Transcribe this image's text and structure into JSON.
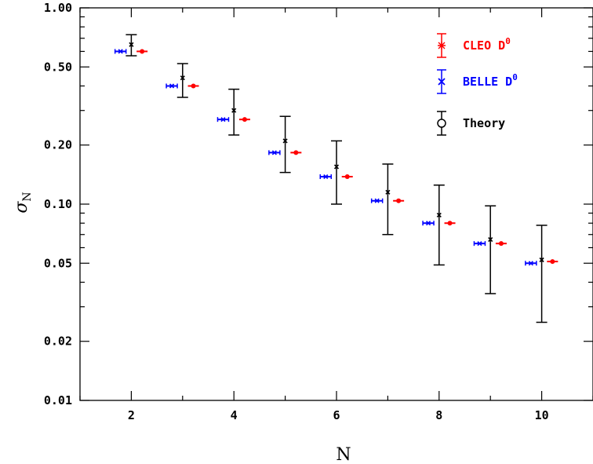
{
  "chart_data": {
    "type": "scatter",
    "xlabel": "N",
    "ylabel": "σ",
    "ylabel_sub": "N",
    "xlim": [
      1,
      11
    ],
    "ylim": [
      0.01,
      1.0
    ],
    "yscale": "log",
    "x_ticks": [
      "2",
      "4",
      "6",
      "8",
      "10"
    ],
    "y_ticks": [
      "0.01",
      "0.02",
      "0.05",
      "0.10",
      "0.20",
      "0.50",
      "1.00"
    ],
    "grid": false,
    "legend_position": "top-right",
    "series": [
      {
        "name": "CLEO D",
        "name_sup": "0",
        "color": "#ff0000",
        "marker": "star",
        "x": [
          2,
          3,
          4,
          5,
          6,
          7,
          8,
          9,
          10
        ],
        "y": [
          0.6,
          0.4,
          0.27,
          0.183,
          0.138,
          0.104,
          0.08,
          0.063,
          0.051
        ],
        "err": [
          0.01,
          0.008,
          0.006,
          0.004,
          0.003,
          0.002,
          0.002,
          0.0015,
          0.0012
        ]
      },
      {
        "name": "BELLE D",
        "name_sup": "0",
        "color": "#0000ff",
        "marker": "x",
        "x": [
          2,
          3,
          4,
          5,
          6,
          7,
          8,
          9,
          10
        ],
        "y": [
          0.6,
          0.4,
          0.27,
          0.183,
          0.138,
          0.104,
          0.08,
          0.063,
          0.05
        ],
        "err": [
          0.012,
          0.01,
          0.008,
          0.006,
          0.005,
          0.004,
          0.003,
          0.0025,
          0.002
        ]
      },
      {
        "name": "Theory",
        "color": "#000000",
        "marker": "circle",
        "x": [
          2,
          3,
          4,
          5,
          6,
          7,
          8,
          9,
          10
        ],
        "y": [
          0.65,
          0.44,
          0.3,
          0.21,
          0.155,
          0.115,
          0.088,
          0.066,
          0.052
        ],
        "y_low": [
          0.57,
          0.35,
          0.225,
          0.145,
          0.1,
          0.07,
          0.049,
          0.035,
          0.025
        ],
        "y_high": [
          0.73,
          0.52,
          0.385,
          0.28,
          0.21,
          0.16,
          0.125,
          0.098,
          0.078
        ]
      }
    ]
  }
}
